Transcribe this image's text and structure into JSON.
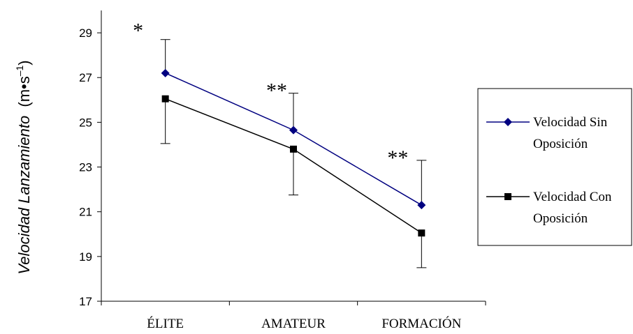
{
  "chart_data": {
    "type": "line",
    "categories": [
      "ÉLITE",
      "AMATEUR",
      "FORMACIÓN"
    ],
    "ylabel_italic": "Velocidad Lanzamiento",
    "ylabel_unit_open": "(m•s",
    "ylabel_unit_sup": "–1",
    "ylabel_unit_close": ")",
    "ylim": [
      17,
      30
    ],
    "yticks": [
      17,
      19,
      21,
      23,
      25,
      27,
      29
    ],
    "grid": false,
    "legend_position": "right",
    "series": [
      {
        "name_line1": "Velocidad Sin",
        "name_line2": "Oposición",
        "color": "#000080",
        "marker": "diamond",
        "values": [
          27.2,
          24.65,
          21.3
        ],
        "error_upper": [
          28.7,
          26.3,
          23.3
        ]
      },
      {
        "name_line1": "Velocidad Con",
        "name_line2": "Oposición",
        "color": "#000000",
        "marker": "square",
        "values": [
          26.05,
          23.8,
          20.05
        ],
        "error_lower": [
          24.05,
          21.75,
          18.5
        ]
      }
    ],
    "annotations": [
      "*",
      "**",
      "**"
    ]
  }
}
